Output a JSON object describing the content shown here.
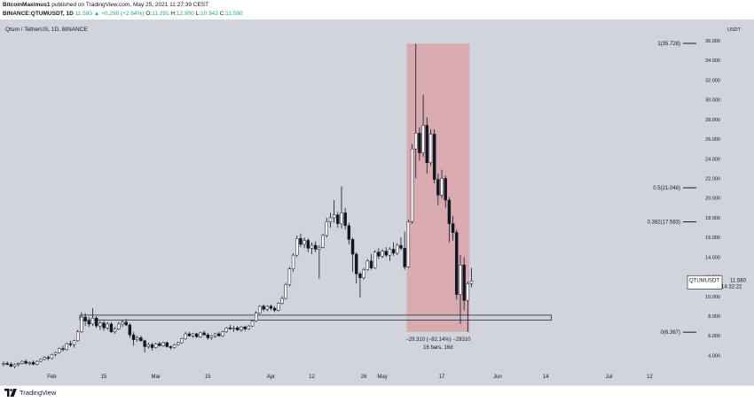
{
  "header": {
    "author": "BitcoinMaximus1",
    "published": "published on TradingView.com, May 25, 2021 11:27:39 CEST",
    "symbol_line": "BINANCE:QTUMUSDT, 1D",
    "change": "11.580 ▲ +0.298 (+2.64%)",
    "ohlc": {
      "o_label": "O:",
      "o": "11.291",
      "h_label": "H:",
      "h": "12.900",
      "l_label": "L:",
      "l": "10.943",
      "c_label": "C:",
      "c": "11.580"
    }
  },
  "footer": {
    "brand": "TradingView"
  },
  "colors": {
    "background": "#d1d4dc",
    "bull": "#ffffff",
    "bear": "#131722",
    "box": "#d9a3a8",
    "accent": "#131722"
  },
  "chart_data": {
    "type": "candlestick",
    "title": "Qtum / TetherUS, 1D, BINANCE",
    "currency": "USDT",
    "y_ticks": [
      "36.000",
      "34.000",
      "32.000",
      "30.000",
      "28.000",
      "26.000",
      "24.000",
      "22.000",
      "20.000",
      "18.000",
      "16.000",
      "14.000",
      "12.000",
      "10.000",
      "8.000",
      "6.000",
      "4.000"
    ],
    "x_ticks": [
      {
        "label": "Feb",
        "date": "2021-02-01"
      },
      {
        "label": "15",
        "date": "2021-02-15"
      },
      {
        "label": "Mar",
        "date": "2021-03-01"
      },
      {
        "label": "15",
        "date": "2021-03-15"
      },
      {
        "label": "Apr",
        "date": "2021-04-01"
      },
      {
        "label": "12",
        "date": "2021-04-12"
      },
      {
        "label": "26",
        "date": "2021-04-26"
      },
      {
        "label": "May",
        "date": "2021-05-01"
      },
      {
        "label": "17",
        "date": "2021-05-17"
      },
      {
        "label": "Jun",
        "date": "2021-06-01"
      },
      {
        "label": "14",
        "date": "2021-06-14"
      },
      {
        "label": "Jul",
        "date": "2021-07-01"
      },
      {
        "label": "12",
        "date": "2021-07-12"
      }
    ],
    "ylim": [
      2.6,
      37.8
    ],
    "xlim": [
      "2021-01-19",
      "2021-07-20"
    ],
    "candles": [
      {
        "date": "2021-01-19",
        "o": 3.1,
        "h": 3.4,
        "l": 2.9,
        "c": 3.2
      },
      {
        "date": "2021-01-20",
        "o": 3.2,
        "h": 3.4,
        "l": 3.0,
        "c": 3.1
      },
      {
        "date": "2021-01-21",
        "o": 3.1,
        "h": 3.3,
        "l": 2.8,
        "c": 2.9
      },
      {
        "date": "2021-01-22",
        "o": 2.9,
        "h": 3.2,
        "l": 2.7,
        "c": 3.1
      },
      {
        "date": "2021-01-23",
        "o": 3.1,
        "h": 3.3,
        "l": 2.9,
        "c": 3.2
      },
      {
        "date": "2021-01-24",
        "o": 3.2,
        "h": 3.5,
        "l": 3.1,
        "c": 3.4
      },
      {
        "date": "2021-01-25",
        "o": 3.4,
        "h": 3.6,
        "l": 3.1,
        "c": 3.2
      },
      {
        "date": "2021-01-26",
        "o": 3.2,
        "h": 3.4,
        "l": 3.0,
        "c": 3.3
      },
      {
        "date": "2021-01-27",
        "o": 3.3,
        "h": 3.5,
        "l": 3.0,
        "c": 3.1
      },
      {
        "date": "2021-01-28",
        "o": 3.1,
        "h": 3.5,
        "l": 3.0,
        "c": 3.4
      },
      {
        "date": "2021-01-29",
        "o": 3.4,
        "h": 3.7,
        "l": 3.3,
        "c": 3.6
      },
      {
        "date": "2021-01-30",
        "o": 3.6,
        "h": 3.9,
        "l": 3.5,
        "c": 3.8
      },
      {
        "date": "2021-01-31",
        "o": 3.8,
        "h": 4.0,
        "l": 3.5,
        "c": 3.7
      },
      {
        "date": "2021-02-01",
        "o": 3.7,
        "h": 4.2,
        "l": 3.6,
        "c": 4.1
      },
      {
        "date": "2021-02-02",
        "o": 4.1,
        "h": 4.4,
        "l": 3.9,
        "c": 4.3
      },
      {
        "date": "2021-02-03",
        "o": 4.3,
        "h": 4.8,
        "l": 4.2,
        "c": 4.7
      },
      {
        "date": "2021-02-04",
        "o": 4.7,
        "h": 5.0,
        "l": 4.4,
        "c": 4.6
      },
      {
        "date": "2021-02-05",
        "o": 4.6,
        "h": 5.3,
        "l": 4.5,
        "c": 5.2
      },
      {
        "date": "2021-02-06",
        "o": 5.2,
        "h": 5.5,
        "l": 4.9,
        "c": 5.1
      },
      {
        "date": "2021-02-07",
        "o": 5.1,
        "h": 5.6,
        "l": 4.8,
        "c": 5.5
      },
      {
        "date": "2021-02-08",
        "o": 5.5,
        "h": 6.6,
        "l": 5.4,
        "c": 6.4
      },
      {
        "date": "2021-02-09",
        "o": 6.4,
        "h": 8.4,
        "l": 6.3,
        "c": 7.9
      },
      {
        "date": "2021-02-10",
        "o": 7.9,
        "h": 8.3,
        "l": 7.0,
        "c": 7.5
      },
      {
        "date": "2021-02-11",
        "o": 7.5,
        "h": 7.9,
        "l": 6.9,
        "c": 7.2
      },
      {
        "date": "2021-02-12",
        "o": 7.2,
        "h": 8.8,
        "l": 7.0,
        "c": 7.8
      },
      {
        "date": "2021-02-13",
        "o": 7.8,
        "h": 8.0,
        "l": 6.8,
        "c": 7.0
      },
      {
        "date": "2021-02-14",
        "o": 7.0,
        "h": 7.5,
        "l": 6.6,
        "c": 7.3
      },
      {
        "date": "2021-02-15",
        "o": 7.3,
        "h": 7.5,
        "l": 6.5,
        "c": 6.8
      },
      {
        "date": "2021-02-16",
        "o": 6.8,
        "h": 7.4,
        "l": 6.6,
        "c": 7.2
      },
      {
        "date": "2021-02-17",
        "o": 7.2,
        "h": 7.4,
        "l": 6.3,
        "c": 6.4
      },
      {
        "date": "2021-02-18",
        "o": 6.4,
        "h": 6.9,
        "l": 6.2,
        "c": 6.7
      },
      {
        "date": "2021-02-19",
        "o": 6.7,
        "h": 7.4,
        "l": 6.6,
        "c": 7.2
      },
      {
        "date": "2021-02-20",
        "o": 7.2,
        "h": 7.6,
        "l": 6.9,
        "c": 7.4
      },
      {
        "date": "2021-02-21",
        "o": 7.4,
        "h": 7.7,
        "l": 7.0,
        "c": 7.1
      },
      {
        "date": "2021-02-22",
        "o": 7.1,
        "h": 7.3,
        "l": 5.8,
        "c": 6.1
      },
      {
        "date": "2021-02-23",
        "o": 6.1,
        "h": 6.4,
        "l": 5.0,
        "c": 5.6
      },
      {
        "date": "2021-02-24",
        "o": 5.6,
        "h": 6.0,
        "l": 5.4,
        "c": 5.8
      },
      {
        "date": "2021-02-25",
        "o": 5.8,
        "h": 6.0,
        "l": 5.4,
        "c": 5.5
      },
      {
        "date": "2021-02-26",
        "o": 5.5,
        "h": 5.6,
        "l": 4.3,
        "c": 4.9
      },
      {
        "date": "2021-02-27",
        "o": 4.9,
        "h": 5.3,
        "l": 4.7,
        "c": 5.1
      },
      {
        "date": "2021-02-28",
        "o": 5.1,
        "h": 5.3,
        "l": 4.5,
        "c": 4.8
      },
      {
        "date": "2021-03-01",
        "o": 4.8,
        "h": 5.3,
        "l": 4.7,
        "c": 5.2
      },
      {
        "date": "2021-03-02",
        "o": 5.2,
        "h": 5.4,
        "l": 4.9,
        "c": 5.0
      },
      {
        "date": "2021-03-03",
        "o": 5.0,
        "h": 5.4,
        "l": 4.9,
        "c": 5.3
      },
      {
        "date": "2021-03-04",
        "o": 5.3,
        "h": 5.4,
        "l": 4.8,
        "c": 4.9
      },
      {
        "date": "2021-03-05",
        "o": 4.9,
        "h": 5.0,
        "l": 4.6,
        "c": 4.8
      },
      {
        "date": "2021-03-06",
        "o": 4.8,
        "h": 5.2,
        "l": 4.7,
        "c": 5.1
      },
      {
        "date": "2021-03-07",
        "o": 5.1,
        "h": 5.4,
        "l": 5.0,
        "c": 5.3
      },
      {
        "date": "2021-03-08",
        "o": 5.3,
        "h": 5.8,
        "l": 5.2,
        "c": 5.7
      },
      {
        "date": "2021-03-09",
        "o": 5.7,
        "h": 6.4,
        "l": 5.6,
        "c": 6.2
      },
      {
        "date": "2021-03-10",
        "o": 6.2,
        "h": 6.4,
        "l": 5.9,
        "c": 6.0
      },
      {
        "date": "2021-03-11",
        "o": 6.0,
        "h": 6.3,
        "l": 5.8,
        "c": 6.2
      },
      {
        "date": "2021-03-12",
        "o": 6.2,
        "h": 6.3,
        "l": 5.8,
        "c": 5.9
      },
      {
        "date": "2021-03-13",
        "o": 5.9,
        "h": 6.4,
        "l": 5.8,
        "c": 6.3
      },
      {
        "date": "2021-03-14",
        "o": 6.3,
        "h": 6.5,
        "l": 6.0,
        "c": 6.1
      },
      {
        "date": "2021-03-15",
        "o": 6.1,
        "h": 6.3,
        "l": 5.6,
        "c": 5.8
      },
      {
        "date": "2021-03-16",
        "o": 5.8,
        "h": 6.1,
        "l": 5.6,
        "c": 6.0
      },
      {
        "date": "2021-03-17",
        "o": 6.0,
        "h": 6.3,
        "l": 5.8,
        "c": 6.2
      },
      {
        "date": "2021-03-18",
        "o": 6.2,
        "h": 6.4,
        "l": 5.9,
        "c": 6.0
      },
      {
        "date": "2021-03-19",
        "o": 6.0,
        "h": 6.5,
        "l": 5.9,
        "c": 6.4
      },
      {
        "date": "2021-03-20",
        "o": 6.4,
        "h": 6.9,
        "l": 6.3,
        "c": 6.8
      },
      {
        "date": "2021-03-21",
        "o": 6.8,
        "h": 7.1,
        "l": 6.6,
        "c": 6.7
      },
      {
        "date": "2021-03-22",
        "o": 6.7,
        "h": 7.0,
        "l": 6.4,
        "c": 6.8
      },
      {
        "date": "2021-03-23",
        "o": 6.8,
        "h": 7.0,
        "l": 6.5,
        "c": 6.6
      },
      {
        "date": "2021-03-24",
        "o": 6.6,
        "h": 7.0,
        "l": 6.4,
        "c": 6.9
      },
      {
        "date": "2021-03-25",
        "o": 6.9,
        "h": 7.0,
        "l": 6.5,
        "c": 6.7
      },
      {
        "date": "2021-03-26",
        "o": 6.7,
        "h": 7.1,
        "l": 6.6,
        "c": 7.0
      },
      {
        "date": "2021-03-27",
        "o": 7.0,
        "h": 7.6,
        "l": 6.9,
        "c": 7.5
      },
      {
        "date": "2021-03-28",
        "o": 7.5,
        "h": 8.5,
        "l": 7.4,
        "c": 8.3
      },
      {
        "date": "2021-03-29",
        "o": 8.3,
        "h": 9.1,
        "l": 8.2,
        "c": 9.0
      },
      {
        "date": "2021-03-30",
        "o": 9.0,
        "h": 9.2,
        "l": 8.5,
        "c": 8.7
      },
      {
        "date": "2021-03-31",
        "o": 8.7,
        "h": 9.1,
        "l": 8.5,
        "c": 9.0
      },
      {
        "date": "2021-04-01",
        "o": 9.0,
        "h": 9.2,
        "l": 8.6,
        "c": 8.8
      },
      {
        "date": "2021-04-02",
        "o": 8.8,
        "h": 9.0,
        "l": 8.4,
        "c": 8.6
      },
      {
        "date": "2021-04-03",
        "o": 8.6,
        "h": 9.4,
        "l": 8.5,
        "c": 9.3
      },
      {
        "date": "2021-04-04",
        "o": 9.3,
        "h": 10.0,
        "l": 9.2,
        "c": 9.8
      },
      {
        "date": "2021-04-05",
        "o": 9.8,
        "h": 11.4,
        "l": 9.7,
        "c": 11.2
      },
      {
        "date": "2021-04-06",
        "o": 11.2,
        "h": 13.0,
        "l": 11.0,
        "c": 12.8
      },
      {
        "date": "2021-04-07",
        "o": 12.8,
        "h": 14.4,
        "l": 12.5,
        "c": 14.2
      },
      {
        "date": "2021-04-08",
        "o": 14.2,
        "h": 16.2,
        "l": 14.0,
        "c": 15.9
      },
      {
        "date": "2021-04-09",
        "o": 15.9,
        "h": 16.4,
        "l": 15.0,
        "c": 15.3
      },
      {
        "date": "2021-04-10",
        "o": 15.3,
        "h": 16.0,
        "l": 14.9,
        "c": 15.7
      },
      {
        "date": "2021-04-11",
        "o": 15.7,
        "h": 15.9,
        "l": 14.5,
        "c": 14.9
      },
      {
        "date": "2021-04-12",
        "o": 14.9,
        "h": 15.5,
        "l": 14.3,
        "c": 15.2
      },
      {
        "date": "2021-04-13",
        "o": 15.2,
        "h": 15.6,
        "l": 14.5,
        "c": 14.8
      },
      {
        "date": "2021-04-14",
        "o": 14.8,
        "h": 15.2,
        "l": 11.8,
        "c": 15.0
      },
      {
        "date": "2021-04-15",
        "o": 15.0,
        "h": 16.4,
        "l": 14.9,
        "c": 16.2
      },
      {
        "date": "2021-04-16",
        "o": 16.2,
        "h": 18.0,
        "l": 16.0,
        "c": 17.6
      },
      {
        "date": "2021-04-17",
        "o": 17.6,
        "h": 18.5,
        "l": 17.0,
        "c": 18.0
      },
      {
        "date": "2021-04-18",
        "o": 18.0,
        "h": 19.8,
        "l": 17.5,
        "c": 18.3
      },
      {
        "date": "2021-04-19",
        "o": 18.3,
        "h": 18.6,
        "l": 17.0,
        "c": 17.4
      },
      {
        "date": "2021-04-20",
        "o": 17.4,
        "h": 21.2,
        "l": 16.9,
        "c": 18.5
      },
      {
        "date": "2021-04-21",
        "o": 18.5,
        "h": 19.0,
        "l": 16.8,
        "c": 17.2
      },
      {
        "date": "2021-04-22",
        "o": 17.2,
        "h": 17.5,
        "l": 15.3,
        "c": 15.8
      },
      {
        "date": "2021-04-23",
        "o": 15.8,
        "h": 16.0,
        "l": 12.5,
        "c": 14.3
      },
      {
        "date": "2021-04-24",
        "o": 14.3,
        "h": 14.5,
        "l": 11.3,
        "c": 12.3
      },
      {
        "date": "2021-04-25",
        "o": 12.3,
        "h": 12.5,
        "l": 9.9,
        "c": 11.9
      },
      {
        "date": "2021-04-26",
        "o": 11.9,
        "h": 12.9,
        "l": 11.7,
        "c": 12.7
      },
      {
        "date": "2021-04-27",
        "o": 12.7,
        "h": 13.8,
        "l": 12.6,
        "c": 13.6
      },
      {
        "date": "2021-04-28",
        "o": 13.6,
        "h": 14.3,
        "l": 12.7,
        "c": 12.9
      },
      {
        "date": "2021-04-29",
        "o": 12.9,
        "h": 14.7,
        "l": 12.8,
        "c": 14.5
      },
      {
        "date": "2021-04-30",
        "o": 14.5,
        "h": 14.9,
        "l": 13.8,
        "c": 14.1
      },
      {
        "date": "2021-05-01",
        "o": 14.1,
        "h": 14.8,
        "l": 13.9,
        "c": 14.6
      },
      {
        "date": "2021-05-02",
        "o": 14.6,
        "h": 15.0,
        "l": 14.0,
        "c": 14.2
      },
      {
        "date": "2021-05-03",
        "o": 14.2,
        "h": 15.0,
        "l": 13.6,
        "c": 14.8
      },
      {
        "date": "2021-05-04",
        "o": 14.8,
        "h": 15.5,
        "l": 14.1,
        "c": 14.4
      },
      {
        "date": "2021-05-05",
        "o": 14.4,
        "h": 15.4,
        "l": 14.2,
        "c": 15.2
      },
      {
        "date": "2021-05-06",
        "o": 15.2,
        "h": 16.0,
        "l": 14.7,
        "c": 14.9
      },
      {
        "date": "2021-05-07",
        "o": 14.9,
        "h": 16.6,
        "l": 12.7,
        "c": 13.0
      },
      {
        "date": "2021-05-08",
        "o": 13.0,
        "h": 17.8,
        "l": 12.9,
        "c": 17.6
      },
      {
        "date": "2021-05-09",
        "o": 17.6,
        "h": 25.5,
        "l": 17.4,
        "c": 25.0
      },
      {
        "date": "2021-05-10",
        "o": 25.0,
        "h": 35.7,
        "l": 22.0,
        "c": 26.6
      },
      {
        "date": "2021-05-11",
        "o": 26.6,
        "h": 27.2,
        "l": 23.8,
        "c": 24.6
      },
      {
        "date": "2021-05-12",
        "o": 24.6,
        "h": 30.5,
        "l": 24.2,
        "c": 27.4
      },
      {
        "date": "2021-05-13",
        "o": 27.4,
        "h": 28.2,
        "l": 22.5,
        "c": 23.6
      },
      {
        "date": "2021-05-14",
        "o": 23.6,
        "h": 27.0,
        "l": 23.3,
        "c": 26.5
      },
      {
        "date": "2021-05-15",
        "o": 26.5,
        "h": 27.0,
        "l": 21.5,
        "c": 21.9
      },
      {
        "date": "2021-05-16",
        "o": 21.9,
        "h": 22.5,
        "l": 19.3,
        "c": 20.3
      },
      {
        "date": "2021-05-17",
        "o": 20.3,
        "h": 22.9,
        "l": 20.0,
        "c": 22.0
      },
      {
        "date": "2021-05-18",
        "o": 22.0,
        "h": 22.3,
        "l": 19.0,
        "c": 19.8
      },
      {
        "date": "2021-05-19",
        "o": 19.8,
        "h": 20.1,
        "l": 15.5,
        "c": 17.4
      },
      {
        "date": "2021-05-20",
        "o": 17.4,
        "h": 18.2,
        "l": 15.7,
        "c": 16.5
      },
      {
        "date": "2021-05-21",
        "o": 16.5,
        "h": 16.8,
        "l": 9.7,
        "c": 10.2
      },
      {
        "date": "2021-05-22",
        "o": 10.2,
        "h": 14.2,
        "l": 7.2,
        "c": 13.2
      },
      {
        "date": "2021-05-23",
        "o": 13.2,
        "h": 14.0,
        "l": 8.6,
        "c": 9.6
      },
      {
        "date": "2021-05-24",
        "o": 9.6,
        "h": 11.5,
        "l": 6.4,
        "c": 11.3
      },
      {
        "date": "2021-05-25",
        "o": 11.291,
        "h": 12.9,
        "l": 10.943,
        "c": 11.58
      }
    ],
    "fib_levels": [
      {
        "label": "1(35.728)",
        "value": 35.728
      },
      {
        "label": "0.5(21.048)",
        "value": 21.048
      },
      {
        "label": "0.382(17.583)",
        "value": 17.583
      },
      {
        "label": "0(6.367)",
        "value": 6.367
      }
    ],
    "support_zone": {
      "start": "2021-02-09",
      "end": "2021-06-16",
      "low": 7.6,
      "high": 8.1
    },
    "range_box": {
      "start": "2021-05-08",
      "end": "2021-05-24",
      "low": 6.4,
      "high": 35.7,
      "label1": "−29.310 (−82.14%) −29310",
      "label2": "16 bars, 16d"
    },
    "last_price": {
      "symbol": "QTUMUSDT",
      "value": "11.580",
      "countdown": "14:32:22"
    }
  }
}
